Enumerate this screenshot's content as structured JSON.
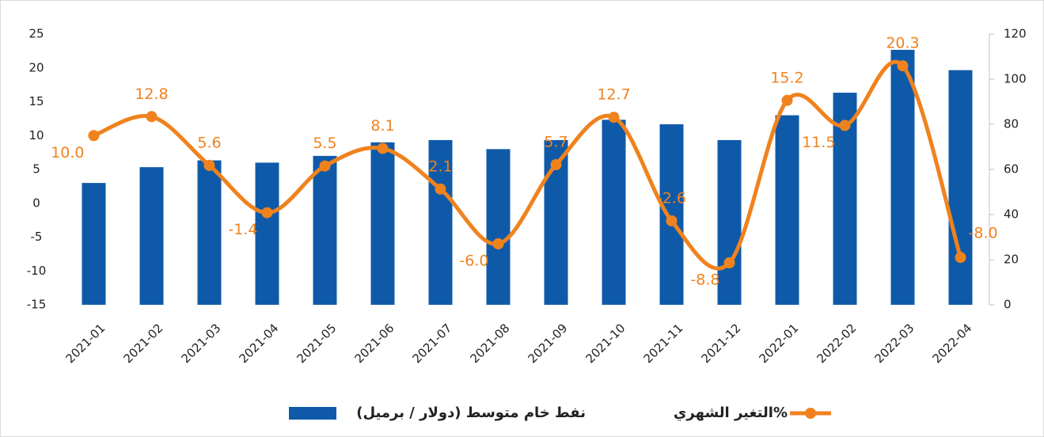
{
  "chart_data": {
    "type": "bar_line",
    "categories": [
      "2021-01",
      "2021-02",
      "2021-03",
      "2021-04",
      "2021-05",
      "2021-06",
      "2021-07",
      "2021-08",
      "2021-09",
      "2021-10",
      "2021-11",
      "2021-12",
      "2022-01",
      "2022-02",
      "2022-03",
      "2022-04"
    ],
    "series": [
      {
        "name": "نفط خام متوسط (دولار / برميل)",
        "type": "bar",
        "axis": "y2",
        "color": "#0f5aa8",
        "values": [
          54,
          61,
          64,
          63,
          66,
          72,
          73,
          69,
          73,
          82,
          80,
          73,
          84,
          94,
          113,
          104
        ]
      },
      {
        "name": "التغير الشهري%",
        "type": "line",
        "axis": "y",
        "color": "#f0821e",
        "values": [
          10.0,
          12.8,
          5.6,
          -1.4,
          5.5,
          8.1,
          2.1,
          -6.0,
          5.7,
          12.7,
          -2.6,
          -8.8,
          15.2,
          11.5,
          20.3,
          -8.0
        ],
        "value_labels": [
          "10.0",
          "12.8",
          "5.6",
          "-1.4",
          "5.5",
          "8.1",
          "2.1",
          "-6.0",
          "5.7",
          "12.7",
          "-2.6",
          "-8.8",
          "15.2",
          "11.5",
          "20.3",
          "-8.0"
        ]
      }
    ],
    "ylim": [
      -15,
      25
    ],
    "yticks": [
      -15,
      -10,
      -5,
      0,
      5,
      10,
      15,
      20,
      25
    ],
    "y2lim": [
      0,
      120
    ],
    "y2ticks": [
      0,
      20,
      40,
      60,
      80,
      100,
      120
    ],
    "legend": "bottom"
  }
}
